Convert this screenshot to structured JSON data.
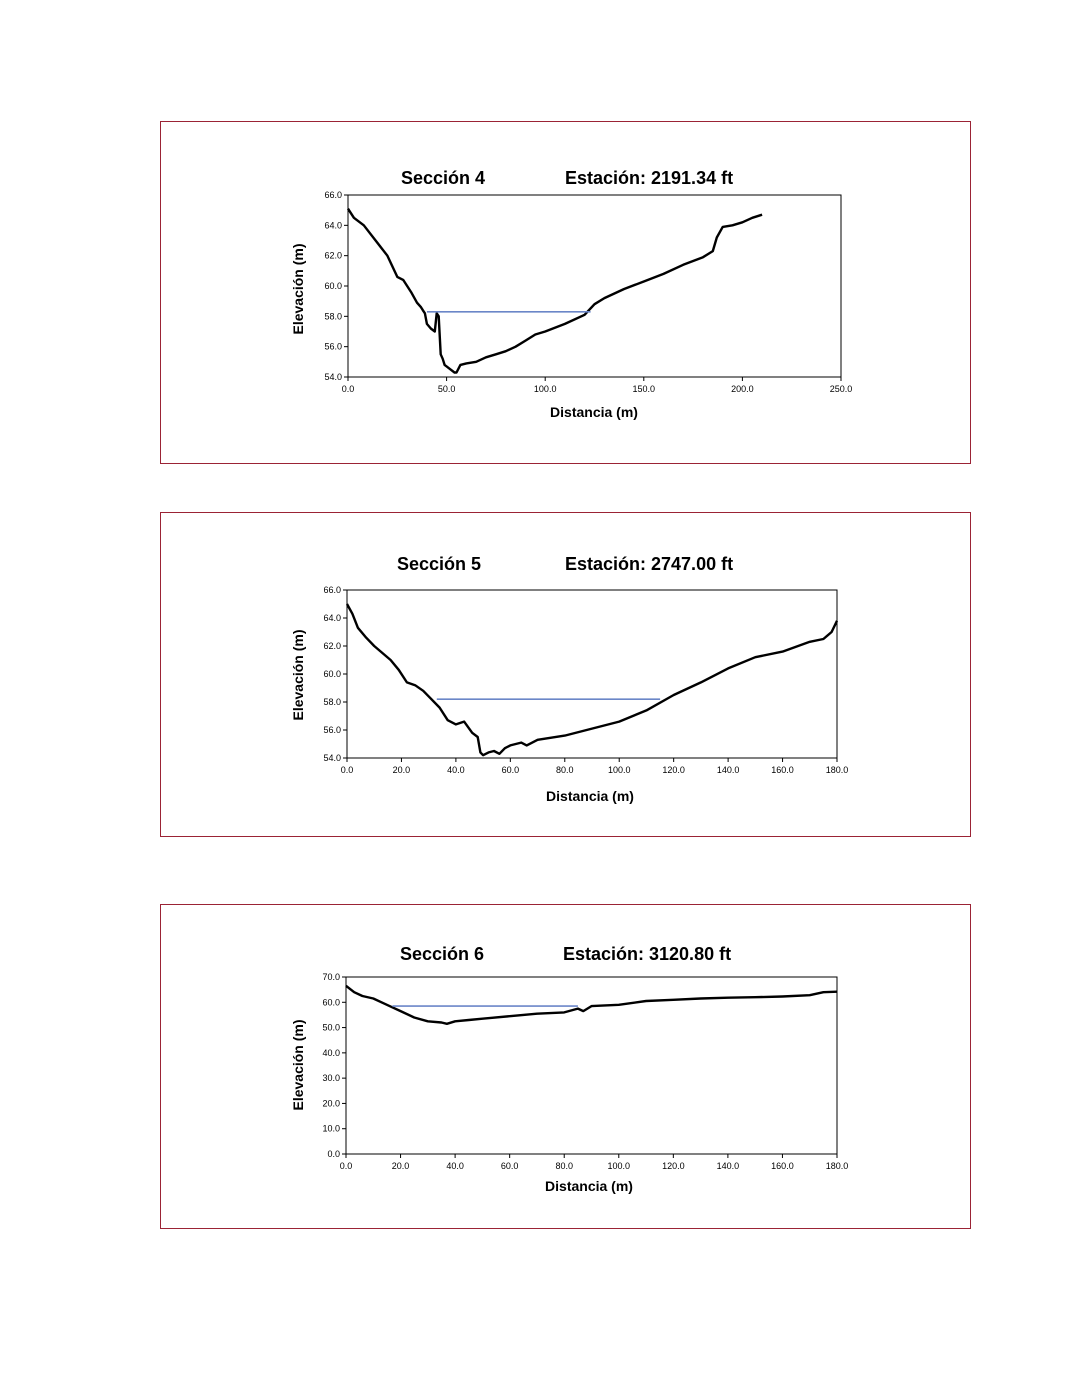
{
  "page": {
    "frame_color": "#9b2335",
    "water_color": "#6b86c8",
    "profile_color": "#000000"
  },
  "chart_data": [
    {
      "type": "line",
      "title": "Sección 4",
      "station": "Estación: 2191.34 ft",
      "xlabel": "Distancia (m)",
      "ylabel": "Elevación (m)",
      "xlim": [
        0,
        250
      ],
      "ylim": [
        54,
        66
      ],
      "xticks": [
        0,
        50,
        100,
        150,
        200,
        250
      ],
      "yticks": [
        54,
        56,
        58,
        60,
        62,
        64,
        66
      ],
      "xtick_labels": [
        "0.0",
        "50.0",
        "100.0",
        "150.0",
        "200.0",
        "250.0"
      ],
      "ytick_labels": [
        "54.0",
        "56.0",
        "58.0",
        "60.0",
        "62.0",
        "64.0",
        "66.0"
      ],
      "grid": false,
      "series": [
        {
          "role": "ground",
          "x": [
            0,
            3,
            8,
            14,
            20,
            25,
            28,
            32,
            35,
            37,
            38,
            39,
            40,
            42,
            44,
            45,
            46,
            47,
            48,
            49,
            50,
            52,
            54,
            55,
            57,
            60,
            65,
            70,
            75,
            80,
            85,
            90,
            95,
            100,
            110,
            120,
            125,
            130,
            140,
            150,
            160,
            170,
            180,
            185,
            187,
            190,
            195,
            200,
            205,
            210
          ],
          "y": [
            65.1,
            64.5,
            64.0,
            63.0,
            62.0,
            60.6,
            60.4,
            59.6,
            58.9,
            58.6,
            58.4,
            58.2,
            57.5,
            57.2,
            57.0,
            58.2,
            58.0,
            55.5,
            55.2,
            54.8,
            54.7,
            54.5,
            54.3,
            54.3,
            54.8,
            54.9,
            55.0,
            55.3,
            55.5,
            55.7,
            56.0,
            56.4,
            56.8,
            57.0,
            57.5,
            58.1,
            58.8,
            59.2,
            59.8,
            60.3,
            60.8,
            61.4,
            61.9,
            62.3,
            63.2,
            63.9,
            64.0,
            64.2,
            64.5,
            64.7
          ]
        },
        {
          "role": "water_surface",
          "x": [
            40,
            123
          ],
          "y": [
            58.3,
            58.3
          ]
        }
      ]
    },
    {
      "type": "line",
      "title": "Sección 5",
      "station": "Estación: 2747.00 ft",
      "xlabel": "Distancia (m)",
      "ylabel": "Elevación (m)",
      "xlim": [
        0,
        180
      ],
      "ylim": [
        54,
        66
      ],
      "xticks": [
        0,
        20,
        40,
        60,
        80,
        100,
        120,
        140,
        160,
        180
      ],
      "yticks": [
        54,
        56,
        58,
        60,
        62,
        64,
        66
      ],
      "xtick_labels": [
        "0.0",
        "20.0",
        "40.0",
        "60.0",
        "80.0",
        "100.0",
        "120.0",
        "140.0",
        "160.0",
        "180.0"
      ],
      "ytick_labels": [
        "54.0",
        "56.0",
        "58.0",
        "60.0",
        "62.0",
        "64.0",
        "66.0"
      ],
      "grid": false,
      "series": [
        {
          "role": "ground",
          "x": [
            0,
            2,
            4,
            7,
            10,
            13,
            16,
            19,
            22,
            25,
            28,
            31,
            34,
            37,
            40,
            43,
            46,
            48,
            49,
            50,
            52,
            54,
            56,
            58,
            60,
            64,
            66,
            70,
            80,
            90,
            100,
            110,
            120,
            130,
            140,
            150,
            160,
            170,
            175,
            178,
            180
          ],
          "y": [
            65.0,
            64.3,
            63.3,
            62.6,
            62.0,
            61.5,
            61.0,
            60.3,
            59.4,
            59.2,
            58.8,
            58.2,
            57.6,
            56.7,
            56.4,
            56.6,
            55.8,
            55.5,
            54.4,
            54.2,
            54.4,
            54.5,
            54.3,
            54.7,
            54.9,
            55.1,
            54.9,
            55.3,
            55.6,
            56.1,
            56.6,
            57.4,
            58.5,
            59.4,
            60.4,
            61.2,
            61.6,
            62.3,
            62.5,
            63.0,
            63.8
          ]
        },
        {
          "role": "water_surface",
          "x": [
            33,
            115
          ],
          "y": [
            58.2,
            58.2
          ]
        }
      ]
    },
    {
      "type": "line",
      "title": "Sección 6",
      "station": "Estación: 3120.80 ft",
      "xlabel": "Distancia (m)",
      "ylabel": "Elevación (m)",
      "xlim": [
        0,
        180
      ],
      "ylim": [
        0,
        70
      ],
      "xticks": [
        0,
        20,
        40,
        60,
        80,
        100,
        120,
        140,
        160,
        180
      ],
      "yticks": [
        0,
        10,
        20,
        30,
        40,
        50,
        60,
        70
      ],
      "xtick_labels": [
        "0.0",
        "20.0",
        "40.0",
        "60.0",
        "80.0",
        "100.0",
        "120.0",
        "140.0",
        "160.0",
        "180.0"
      ],
      "ytick_labels": [
        "0.0",
        "10.0",
        "20.0",
        "30.0",
        "40.0",
        "50.0",
        "60.0",
        "70.0"
      ],
      "grid": false,
      "series": [
        {
          "role": "ground",
          "x": [
            0,
            3,
            6,
            10,
            13,
            16,
            20,
            25,
            30,
            35,
            37,
            40,
            45,
            50,
            60,
            70,
            80,
            85,
            87,
            90,
            100,
            110,
            120,
            130,
            140,
            150,
            160,
            170,
            175,
            180
          ],
          "y": [
            66.5,
            64.0,
            62.5,
            61.5,
            60.0,
            58.5,
            56.5,
            54.0,
            52.5,
            52.0,
            51.5,
            52.5,
            53.0,
            53.5,
            54.5,
            55.5,
            56.0,
            57.5,
            56.5,
            58.5,
            59.0,
            60.5,
            61.0,
            61.5,
            61.8,
            62.0,
            62.3,
            62.8,
            64.0,
            64.2
          ]
        },
        {
          "role": "water_surface",
          "x": [
            17,
            85
          ],
          "y": [
            58.5,
            58.5
          ]
        }
      ]
    }
  ]
}
